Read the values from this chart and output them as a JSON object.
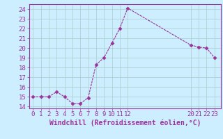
{
  "x": [
    0,
    1,
    2,
    3,
    4,
    5,
    6,
    7,
    8,
    9,
    10,
    11,
    12,
    20,
    21,
    22,
    23
  ],
  "y": [
    15,
    15,
    15,
    15.5,
    15,
    14.3,
    14.3,
    14.9,
    18.3,
    19,
    20.5,
    22,
    24.1,
    20.3,
    20.1,
    20,
    19
  ],
  "line_color": "#993399",
  "marker": "D",
  "marker_size": 2.5,
  "bg_color": "#cceeff",
  "grid_color": "#aacccc",
  "xlabel": "Windchill (Refroidissement éolien,°C)",
  "xlabel_color": "#993399",
  "xlabel_fontsize": 7,
  "tick_color": "#993399",
  "tick_labelsize": 6.5,
  "ylim": [
    13.8,
    24.5
  ],
  "yticks": [
    14,
    15,
    16,
    17,
    18,
    19,
    20,
    21,
    22,
    23,
    24
  ],
  "xticks": [
    0,
    1,
    2,
    3,
    4,
    5,
    6,
    7,
    8,
    9,
    10,
    11,
    12,
    20,
    21,
    22,
    23
  ],
  "xlim": [
    -0.5,
    23.8
  ]
}
